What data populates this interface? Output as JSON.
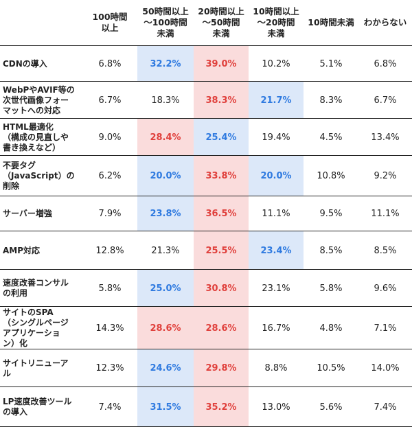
{
  "chart_data": {
    "type": "table",
    "columns": [
      "100時間\n以上",
      "50時間以上\n〜100時間\n未満",
      "20時間以上\n〜50時間\n未満",
      "10時間以上\n〜20時間\n未満",
      "10時間未満",
      "わからない"
    ],
    "rows": [
      {
        "label": "CDNの導入",
        "cells": [
          {
            "v": "6.8%",
            "h": ""
          },
          {
            "v": "32.2%",
            "h": "blue"
          },
          {
            "v": "39.0%",
            "h": "red"
          },
          {
            "v": "10.2%",
            "h": ""
          },
          {
            "v": "5.1%",
            "h": ""
          },
          {
            "v": "6.8%",
            "h": ""
          }
        ]
      },
      {
        "label": "WebPやAVIF等の\n次世代画像フォー\nマットへの対応",
        "cells": [
          {
            "v": "6.7%",
            "h": ""
          },
          {
            "v": "18.3%",
            "h": ""
          },
          {
            "v": "38.3%",
            "h": "red"
          },
          {
            "v": "21.7%",
            "h": "blue"
          },
          {
            "v": "8.3%",
            "h": ""
          },
          {
            "v": "6.7%",
            "h": ""
          }
        ]
      },
      {
        "label": "HTML最適化\n（構成の見直しや\n書き換えなど）",
        "cells": [
          {
            "v": "9.0%",
            "h": ""
          },
          {
            "v": "28.4%",
            "h": "red"
          },
          {
            "v": "25.4%",
            "h": "blue"
          },
          {
            "v": "19.4%",
            "h": ""
          },
          {
            "v": "4.5%",
            "h": ""
          },
          {
            "v": "13.4%",
            "h": ""
          }
        ]
      },
      {
        "label": "不要タグ\n（JavaScript）の\n削除",
        "cells": [
          {
            "v": "6.2%",
            "h": ""
          },
          {
            "v": "20.0%",
            "h": "blue"
          },
          {
            "v": "33.8%",
            "h": "red"
          },
          {
            "v": "20.0%",
            "h": "blue"
          },
          {
            "v": "10.8%",
            "h": ""
          },
          {
            "v": "9.2%",
            "h": ""
          }
        ]
      },
      {
        "label": "サーバー増強",
        "cells": [
          {
            "v": "7.9%",
            "h": ""
          },
          {
            "v": "23.8%",
            "h": "blue"
          },
          {
            "v": "36.5%",
            "h": "red"
          },
          {
            "v": "11.1%",
            "h": ""
          },
          {
            "v": "9.5%",
            "h": ""
          },
          {
            "v": "11.1%",
            "h": ""
          }
        ]
      },
      {
        "label": "AMP対応",
        "cells": [
          {
            "v": "12.8%",
            "h": ""
          },
          {
            "v": "21.3%",
            "h": ""
          },
          {
            "v": "25.5%",
            "h": "red"
          },
          {
            "v": "23.4%",
            "h": "blue"
          },
          {
            "v": "8.5%",
            "h": ""
          },
          {
            "v": "8.5%",
            "h": ""
          }
        ]
      },
      {
        "label": "速度改善コンサル\nの利用",
        "cells": [
          {
            "v": "5.8%",
            "h": ""
          },
          {
            "v": "25.0%",
            "h": "blue"
          },
          {
            "v": "30.8%",
            "h": "red"
          },
          {
            "v": "23.1%",
            "h": ""
          },
          {
            "v": "5.8%",
            "h": ""
          },
          {
            "v": "9.6%",
            "h": ""
          }
        ]
      },
      {
        "label": "サイトのSPA\n（シングルページ\nアプリケーショ\nン）化",
        "cells": [
          {
            "v": "14.3%",
            "h": ""
          },
          {
            "v": "28.6%",
            "h": "red"
          },
          {
            "v": "28.6%",
            "h": "red"
          },
          {
            "v": "16.7%",
            "h": ""
          },
          {
            "v": "4.8%",
            "h": ""
          },
          {
            "v": "7.1%",
            "h": ""
          }
        ]
      },
      {
        "label": "サイトリニューア\nル",
        "cells": [
          {
            "v": "12.3%",
            "h": ""
          },
          {
            "v": "24.6%",
            "h": "blue"
          },
          {
            "v": "29.8%",
            "h": "red"
          },
          {
            "v": "8.8%",
            "h": ""
          },
          {
            "v": "10.5%",
            "h": ""
          },
          {
            "v": "14.0%",
            "h": ""
          }
        ]
      },
      {
        "label": "LP速度改善ツール\nの導入",
        "cells": [
          {
            "v": "7.4%",
            "h": ""
          },
          {
            "v": "31.5%",
            "h": "blue"
          },
          {
            "v": "35.2%",
            "h": "red"
          },
          {
            "v": "13.0%",
            "h": ""
          },
          {
            "v": "5.6%",
            "h": ""
          },
          {
            "v": "7.4%",
            "h": ""
          }
        ]
      }
    ]
  },
  "colors": {
    "blue_fill": "#dce8f9",
    "blue_text": "#2f7ae0",
    "red_fill": "#fadcdc",
    "red_text": "#e0403c"
  }
}
